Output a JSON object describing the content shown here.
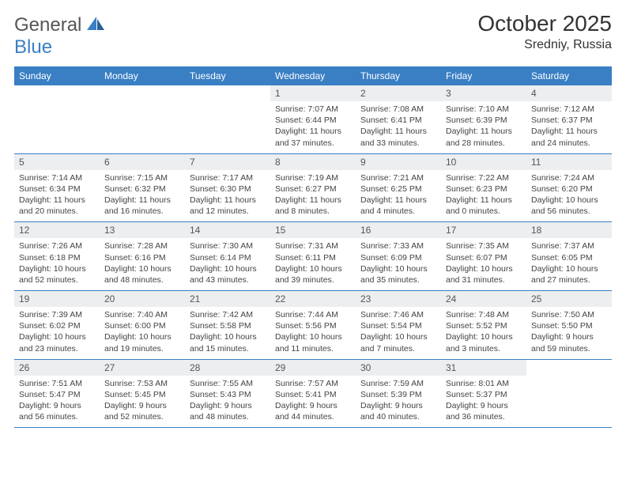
{
  "logo": {
    "text_general": "General",
    "text_blue": "Blue"
  },
  "title": {
    "month": "October 2025",
    "location": "Sredniy, Russia"
  },
  "day_headers": [
    "Sunday",
    "Monday",
    "Tuesday",
    "Wednesday",
    "Thursday",
    "Friday",
    "Saturday"
  ],
  "colors": {
    "header_bg": "#3a7fc4",
    "header_fg": "#ffffff",
    "daynum_bg": "#eceef0",
    "rule": "#3a7fc4",
    "text": "#333333",
    "logo_general": "#555555",
    "logo_blue": "#3a7fc4"
  },
  "weeks": [
    [
      {
        "n": "",
        "sr": "",
        "ss": "",
        "dl": ""
      },
      {
        "n": "",
        "sr": "",
        "ss": "",
        "dl": ""
      },
      {
        "n": "",
        "sr": "",
        "ss": "",
        "dl": ""
      },
      {
        "n": "1",
        "sr": "Sunrise: 7:07 AM",
        "ss": "Sunset: 6:44 PM",
        "dl": "Daylight: 11 hours and 37 minutes."
      },
      {
        "n": "2",
        "sr": "Sunrise: 7:08 AM",
        "ss": "Sunset: 6:41 PM",
        "dl": "Daylight: 11 hours and 33 minutes."
      },
      {
        "n": "3",
        "sr": "Sunrise: 7:10 AM",
        "ss": "Sunset: 6:39 PM",
        "dl": "Daylight: 11 hours and 28 minutes."
      },
      {
        "n": "4",
        "sr": "Sunrise: 7:12 AM",
        "ss": "Sunset: 6:37 PM",
        "dl": "Daylight: 11 hours and 24 minutes."
      }
    ],
    [
      {
        "n": "5",
        "sr": "Sunrise: 7:14 AM",
        "ss": "Sunset: 6:34 PM",
        "dl": "Daylight: 11 hours and 20 minutes."
      },
      {
        "n": "6",
        "sr": "Sunrise: 7:15 AM",
        "ss": "Sunset: 6:32 PM",
        "dl": "Daylight: 11 hours and 16 minutes."
      },
      {
        "n": "7",
        "sr": "Sunrise: 7:17 AM",
        "ss": "Sunset: 6:30 PM",
        "dl": "Daylight: 11 hours and 12 minutes."
      },
      {
        "n": "8",
        "sr": "Sunrise: 7:19 AM",
        "ss": "Sunset: 6:27 PM",
        "dl": "Daylight: 11 hours and 8 minutes."
      },
      {
        "n": "9",
        "sr": "Sunrise: 7:21 AM",
        "ss": "Sunset: 6:25 PM",
        "dl": "Daylight: 11 hours and 4 minutes."
      },
      {
        "n": "10",
        "sr": "Sunrise: 7:22 AM",
        "ss": "Sunset: 6:23 PM",
        "dl": "Daylight: 11 hours and 0 minutes."
      },
      {
        "n": "11",
        "sr": "Sunrise: 7:24 AM",
        "ss": "Sunset: 6:20 PM",
        "dl": "Daylight: 10 hours and 56 minutes."
      }
    ],
    [
      {
        "n": "12",
        "sr": "Sunrise: 7:26 AM",
        "ss": "Sunset: 6:18 PM",
        "dl": "Daylight: 10 hours and 52 minutes."
      },
      {
        "n": "13",
        "sr": "Sunrise: 7:28 AM",
        "ss": "Sunset: 6:16 PM",
        "dl": "Daylight: 10 hours and 48 minutes."
      },
      {
        "n": "14",
        "sr": "Sunrise: 7:30 AM",
        "ss": "Sunset: 6:14 PM",
        "dl": "Daylight: 10 hours and 43 minutes."
      },
      {
        "n": "15",
        "sr": "Sunrise: 7:31 AM",
        "ss": "Sunset: 6:11 PM",
        "dl": "Daylight: 10 hours and 39 minutes."
      },
      {
        "n": "16",
        "sr": "Sunrise: 7:33 AM",
        "ss": "Sunset: 6:09 PM",
        "dl": "Daylight: 10 hours and 35 minutes."
      },
      {
        "n": "17",
        "sr": "Sunrise: 7:35 AM",
        "ss": "Sunset: 6:07 PM",
        "dl": "Daylight: 10 hours and 31 minutes."
      },
      {
        "n": "18",
        "sr": "Sunrise: 7:37 AM",
        "ss": "Sunset: 6:05 PM",
        "dl": "Daylight: 10 hours and 27 minutes."
      }
    ],
    [
      {
        "n": "19",
        "sr": "Sunrise: 7:39 AM",
        "ss": "Sunset: 6:02 PM",
        "dl": "Daylight: 10 hours and 23 minutes."
      },
      {
        "n": "20",
        "sr": "Sunrise: 7:40 AM",
        "ss": "Sunset: 6:00 PM",
        "dl": "Daylight: 10 hours and 19 minutes."
      },
      {
        "n": "21",
        "sr": "Sunrise: 7:42 AM",
        "ss": "Sunset: 5:58 PM",
        "dl": "Daylight: 10 hours and 15 minutes."
      },
      {
        "n": "22",
        "sr": "Sunrise: 7:44 AM",
        "ss": "Sunset: 5:56 PM",
        "dl": "Daylight: 10 hours and 11 minutes."
      },
      {
        "n": "23",
        "sr": "Sunrise: 7:46 AM",
        "ss": "Sunset: 5:54 PM",
        "dl": "Daylight: 10 hours and 7 minutes."
      },
      {
        "n": "24",
        "sr": "Sunrise: 7:48 AM",
        "ss": "Sunset: 5:52 PM",
        "dl": "Daylight: 10 hours and 3 minutes."
      },
      {
        "n": "25",
        "sr": "Sunrise: 7:50 AM",
        "ss": "Sunset: 5:50 PM",
        "dl": "Daylight: 9 hours and 59 minutes."
      }
    ],
    [
      {
        "n": "26",
        "sr": "Sunrise: 7:51 AM",
        "ss": "Sunset: 5:47 PM",
        "dl": "Daylight: 9 hours and 56 minutes."
      },
      {
        "n": "27",
        "sr": "Sunrise: 7:53 AM",
        "ss": "Sunset: 5:45 PM",
        "dl": "Daylight: 9 hours and 52 minutes."
      },
      {
        "n": "28",
        "sr": "Sunrise: 7:55 AM",
        "ss": "Sunset: 5:43 PM",
        "dl": "Daylight: 9 hours and 48 minutes."
      },
      {
        "n": "29",
        "sr": "Sunrise: 7:57 AM",
        "ss": "Sunset: 5:41 PM",
        "dl": "Daylight: 9 hours and 44 minutes."
      },
      {
        "n": "30",
        "sr": "Sunrise: 7:59 AM",
        "ss": "Sunset: 5:39 PM",
        "dl": "Daylight: 9 hours and 40 minutes."
      },
      {
        "n": "31",
        "sr": "Sunrise: 8:01 AM",
        "ss": "Sunset: 5:37 PM",
        "dl": "Daylight: 9 hours and 36 minutes."
      },
      {
        "n": "",
        "sr": "",
        "ss": "",
        "dl": ""
      }
    ]
  ]
}
